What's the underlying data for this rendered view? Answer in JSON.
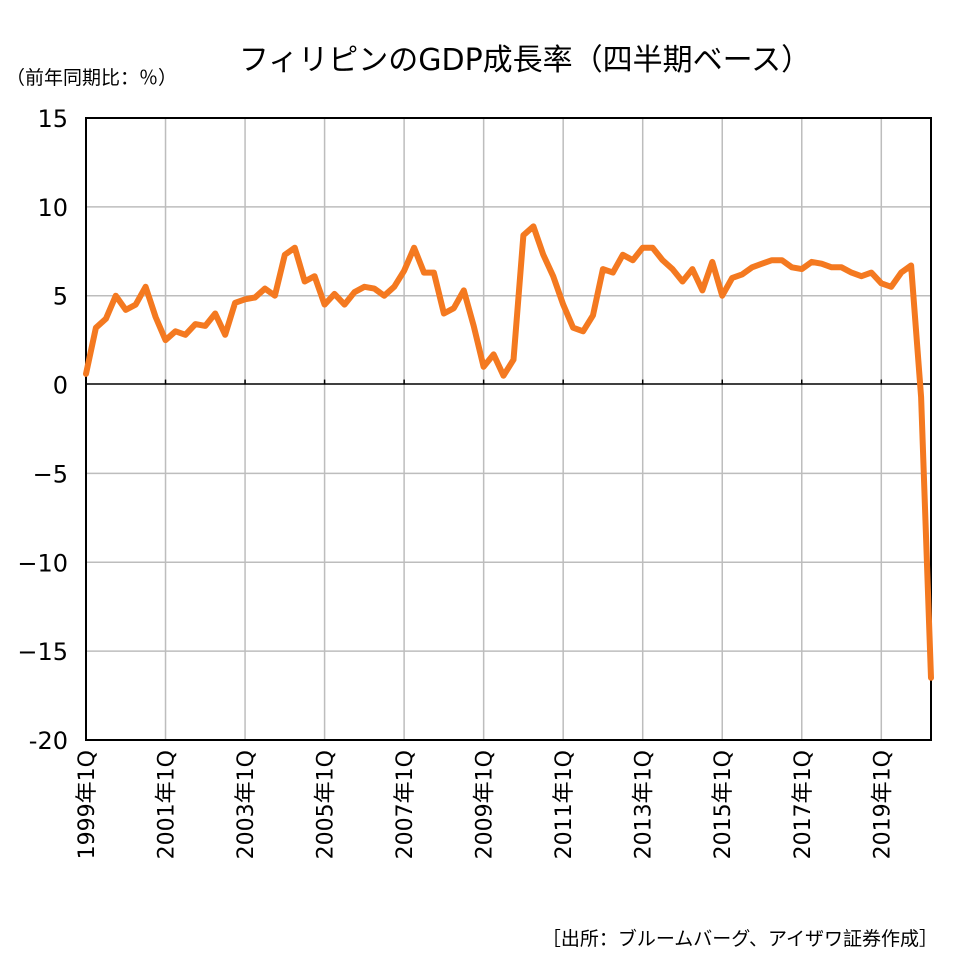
{
  "chart_data": {
    "type": "line",
    "title": "フィリピンのGDP成長率（四半期ベース）",
    "unit_label": "（前年同期比：％）",
    "source": "［出所：ブルームバーグ、アイザワ証券作成］",
    "ylim": [
      -20,
      15
    ],
    "yticks": [
      15,
      10,
      5,
      0,
      -5,
      -10,
      -15,
      -20
    ],
    "ytick_labels": [
      "15",
      "10",
      "5",
      "0",
      "−5",
      "−10",
      "−15",
      "-20"
    ],
    "xtick_labels": [
      "1999年1Q",
      "2001年1Q",
      "2003年1Q",
      "2005年1Q",
      "2007年1Q",
      "2009年1Q",
      "2011年1Q",
      "2013年1Q",
      "2015年1Q",
      "2017年1Q",
      "2019年1Q"
    ],
    "x_start": "1999年1Q",
    "grid": true,
    "line_color": "#f47920",
    "series": [
      {
        "values": [
          0.6,
          3.2,
          3.7,
          5.0,
          4.2,
          4.5,
          5.5,
          3.8,
          2.5,
          3.0,
          2.8,
          3.4,
          3.3,
          4.0,
          2.8,
          4.6,
          4.8,
          4.9,
          5.4,
          5.0,
          7.3,
          7.7,
          5.8,
          6.1,
          4.5,
          5.1,
          4.5,
          5.2,
          5.5,
          5.4,
          5.0,
          5.5,
          6.4,
          7.7,
          6.3,
          6.3,
          4.0,
          4.3,
          5.3,
          3.3,
          1.0,
          1.7,
          0.5,
          1.4,
          8.4,
          8.9,
          7.3,
          6.1,
          4.5,
          3.2,
          3.0,
          3.9,
          6.5,
          6.3,
          7.3,
          7.0,
          7.7,
          7.7,
          7.0,
          6.5,
          5.8,
          6.5,
          5.3,
          6.9,
          5.0,
          6.0,
          6.2,
          6.6,
          6.8,
          7.0,
          7.0,
          6.6,
          6.5,
          6.9,
          6.8,
          6.6,
          6.6,
          6.3,
          6.1,
          6.3,
          5.7,
          5.5,
          6.3,
          6.7,
          -0.7,
          -16.5
        ]
      }
    ]
  }
}
